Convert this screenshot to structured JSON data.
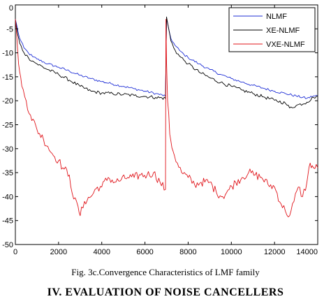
{
  "caption": "Fig. 3c.Convergence Characteristics of LMF family",
  "section_heading": "IV. EVALUATION OF NOISE CANCELLERS",
  "chart_data": {
    "type": "line",
    "title": "",
    "xlabel": "",
    "ylabel": "",
    "xlim": [
      0,
      14000
    ],
    "ylim": [
      -50,
      0
    ],
    "xticks": [
      0,
      2000,
      4000,
      6000,
      8000,
      10000,
      12000,
      14000
    ],
    "yticks": [
      0,
      -5,
      -10,
      -15,
      -20,
      -25,
      -30,
      -35,
      -40,
      -45,
      -50
    ],
    "grid": false,
    "legend_position": "top-right",
    "series": [
      {
        "name": "NLMF",
        "color": "#1f2fd6",
        "x": [
          0,
          100,
          200,
          400,
          600,
          800,
          1000,
          1500,
          2000,
          2500,
          3000,
          3500,
          4000,
          4500,
          5000,
          5500,
          6000,
          6500,
          6950,
          7000,
          7100,
          7200,
          7400,
          7600,
          7800,
          8000,
          8500,
          9000,
          9500,
          10000,
          10500,
          11000,
          11500,
          12000,
          12500,
          13000,
          13500,
          13800,
          14000
        ],
        "y": [
          -3,
          -5,
          -7,
          -9,
          -10,
          -10.8,
          -11.3,
          -12.3,
          -13,
          -13.8,
          -14.7,
          -15.4,
          -16,
          -16.5,
          -17,
          -17.5,
          -18,
          -18.5,
          -19,
          -3,
          -5,
          -7,
          -8.5,
          -9.5,
          -10.3,
          -11,
          -12.3,
          -13.5,
          -14.5,
          -15.4,
          -16.1,
          -16.8,
          -17.4,
          -18,
          -18.5,
          -19,
          -19.5,
          -19,
          -19
        ]
      },
      {
        "name": "XE-NLMF",
        "color": "#000000",
        "x": [
          0,
          100,
          200,
          400,
          600,
          800,
          1000,
          1500,
          2000,
          2500,
          3000,
          3500,
          4000,
          4500,
          5000,
          5500,
          6000,
          6500,
          6950,
          7000,
          7100,
          7200,
          7400,
          7600,
          7800,
          8000,
          8500,
          9000,
          9500,
          10000,
          10500,
          11000,
          11500,
          12000,
          12500,
          12700,
          13000,
          13500,
          13800,
          14000
        ],
        "y": [
          -3,
          -6,
          -8,
          -10,
          -11,
          -11.7,
          -12.3,
          -13.5,
          -14.5,
          -15.7,
          -17,
          -18,
          -18.4,
          -18.5,
          -18.7,
          -18.9,
          -19.1,
          -19.3,
          -19.5,
          -2.5,
          -5,
          -7.5,
          -9.5,
          -10.7,
          -11.5,
          -12.3,
          -14,
          -15.2,
          -16.2,
          -17,
          -17.8,
          -18.5,
          -19.2,
          -19.9,
          -20.5,
          -21.5,
          -21,
          -20.3,
          -19.3,
          -19
        ]
      },
      {
        "name": "VXE-NLMF",
        "color": "#e0141a",
        "x": [
          0,
          100,
          200,
          300,
          500,
          700,
          1000,
          1300,
          1500,
          1700,
          2000,
          2200,
          2500,
          2700,
          2900,
          3000,
          3200,
          3500,
          3800,
          4000,
          4300,
          4600,
          4900,
          5200,
          5500,
          5800,
          6100,
          6400,
          6700,
          6950,
          6970,
          7000,
          7050,
          7150,
          7300,
          7500,
          7700,
          8000,
          8300,
          8600,
          9000,
          9300,
          9600,
          9900,
          10200,
          10500,
          10800,
          11100,
          11400,
          11700,
          12000,
          12300,
          12500,
          12700,
          12900,
          13100,
          13300,
          13500,
          13650,
          13800,
          14000
        ],
        "y": [
          -3,
          -9,
          -14,
          -17,
          -20,
          -23,
          -26,
          -28,
          -29.5,
          -31,
          -32.5,
          -34,
          -35.5,
          -40.5,
          -42,
          -44,
          -41,
          -40,
          -38,
          -38,
          -36,
          -37,
          -36.5,
          -36,
          -36,
          -35.5,
          -35.5,
          -35,
          -37,
          -38.5,
          -3,
          -12,
          -20,
          -27,
          -30.5,
          -33,
          -35,
          -36,
          -37.5,
          -37,
          -37,
          -39,
          -40,
          -38.5,
          -37,
          -36,
          -35,
          -35.5,
          -36,
          -37.5,
          -38,
          -41.5,
          -43,
          -44,
          -41,
          -38,
          -40,
          -37,
          -33,
          -34,
          -34
        ]
      }
    ]
  }
}
